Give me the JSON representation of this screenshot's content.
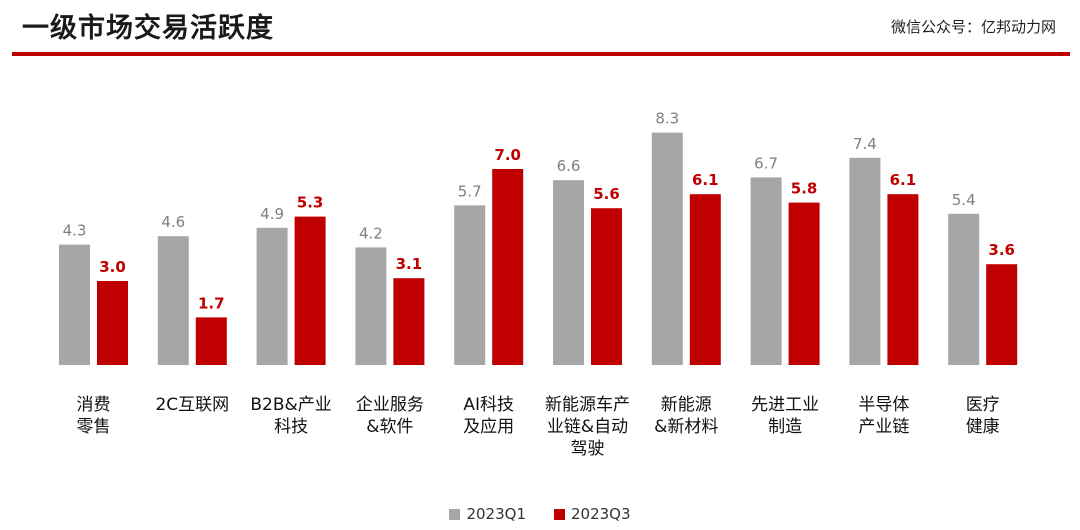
{
  "header": {
    "title": "一级市场交易活跃度",
    "watermark": "微信公众号：亿邦动力网"
  },
  "colors": {
    "accent": "#c00000",
    "series_q1": "#a6a6a6",
    "series_q3": "#c00000"
  },
  "chart_data": {
    "type": "bar",
    "title": "",
    "xlabel": "",
    "ylabel": "",
    "ylim": [
      0,
      9
    ],
    "grid": false,
    "legend_position": "bottom-center",
    "categories": [
      "消费\n零售",
      "2C互联网",
      "B2B&产业\n科技",
      "企业服务\n&软件",
      "AI科技\n及应用",
      "新能源车产\n业链&自动\n驾驶",
      "新能源\n&新材料",
      "先进工业\n制造",
      "半导体\n产业链",
      "医疗\n健康"
    ],
    "series": [
      {
        "name": "2023Q1",
        "values": [
          4.3,
          4.6,
          4.9,
          4.2,
          5.7,
          6.6,
          8.3,
          6.7,
          7.4,
          5.4
        ]
      },
      {
        "name": "2023Q3",
        "values": [
          3.0,
          1.7,
          5.3,
          3.1,
          7.0,
          5.6,
          6.1,
          5.8,
          6.1,
          3.6
        ]
      }
    ]
  }
}
